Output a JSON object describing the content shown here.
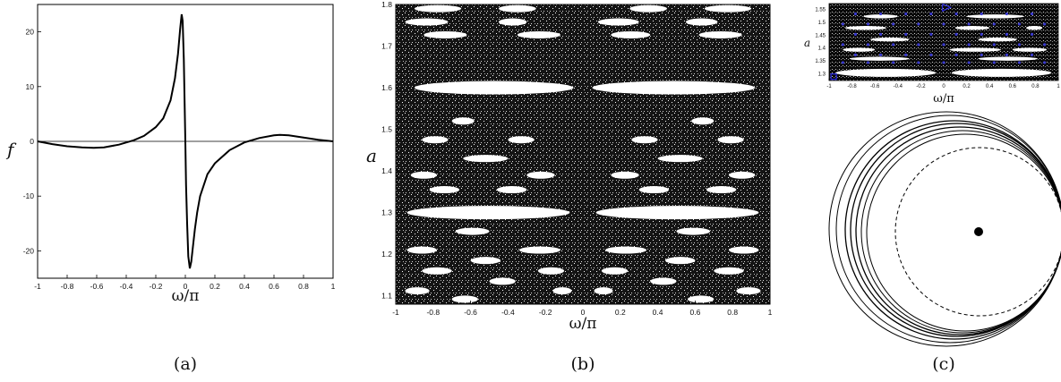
{
  "chart_data": [
    {
      "panel": "(a)",
      "type": "line",
      "xlabel": "ω/π",
      "ylabel": "f",
      "xlim": [
        -1,
        1
      ],
      "ylim": [
        -25,
        25
      ],
      "xticks": [
        "-1",
        "-0.8",
        "-0.6",
        "-0.4",
        "-0.2",
        "0",
        "0.2",
        "0.4",
        "0.6",
        "0.8",
        "1"
      ],
      "yticks": [
        "20",
        "10",
        "0",
        "-10",
        "-20"
      ],
      "ytick_values": [
        20,
        10,
        0,
        -10,
        -20
      ],
      "series": [
        {
          "x": [
            -1.0,
            -0.9,
            -0.8,
            -0.7,
            -0.62,
            -0.55,
            -0.45,
            -0.35,
            -0.28,
            -0.2,
            -0.15,
            -0.1,
            -0.07,
            -0.05,
            -0.035,
            -0.025,
            -0.018,
            -0.01,
            -0.005,
            0.0,
            0.005,
            0.012,
            0.02,
            0.03,
            0.04,
            0.05,
            0.065,
            0.08,
            0.1,
            0.15,
            0.2,
            0.3,
            0.4,
            0.5,
            0.6,
            0.64,
            0.7,
            0.8,
            0.9,
            1.0
          ],
          "values": [
            0,
            -0.5,
            -0.9,
            -1.1,
            -1.2,
            -1.1,
            -0.6,
            0.2,
            1.0,
            2.6,
            4.2,
            7.5,
            11.5,
            16.0,
            20.5,
            23.2,
            22.0,
            15.0,
            7.0,
            0.0,
            -8.0,
            -15.0,
            -21.0,
            -23.2,
            -22.0,
            -19.5,
            -16.0,
            -13.0,
            -10.0,
            -6.0,
            -4.0,
            -1.6,
            -0.2,
            0.6,
            1.1,
            1.2,
            1.1,
            0.7,
            0.3,
            0
          ]
        }
      ],
      "hline": 0
    },
    {
      "panel": "(b)",
      "type": "scatter",
      "xlabel": "ω/π",
      "ylabel": "a",
      "xlim": [
        -1,
        1
      ],
      "ylim": [
        1.08,
        1.8
      ],
      "xticks": [
        "-1",
        "-0.8",
        "-0.6",
        "-0.4",
        "-0.2",
        "0",
        "0.2",
        "0.4",
        "0.6",
        "0.8",
        "1"
      ],
      "yticks": [
        "1.8",
        "1.7",
        "1.6",
        "1.5",
        "1.4",
        "1.3",
        "1.2",
        "1.1"
      ],
      "ytick_values": [
        1.8,
        1.7,
        1.6,
        1.5,
        1.4,
        1.3,
        1.2,
        1.1
      ],
      "islands": [
        {
          "a": 1.6,
          "x": [
            -0.9,
            -0.05
          ]
        },
        {
          "a": 1.6,
          "x": [
            0.05,
            0.92
          ]
        },
        {
          "a": 1.3,
          "x": [
            -0.94,
            -0.07
          ]
        },
        {
          "a": 1.3,
          "x": [
            0.07,
            0.94
          ]
        },
        {
          "a": 1.758,
          "x": [
            -0.95,
            -0.72
          ]
        },
        {
          "a": 1.758,
          "x": [
            -0.45,
            -0.3
          ]
        },
        {
          "a": 1.758,
          "x": [
            0.08,
            0.3
          ]
        },
        {
          "a": 1.758,
          "x": [
            0.55,
            0.72
          ]
        },
        {
          "a": 1.727,
          "x": [
            -0.85,
            -0.62
          ]
        },
        {
          "a": 1.727,
          "x": [
            -0.35,
            -0.12
          ]
        },
        {
          "a": 1.727,
          "x": [
            0.15,
            0.36
          ]
        },
        {
          "a": 1.727,
          "x": [
            0.62,
            0.85
          ]
        },
        {
          "a": 1.79,
          "x": [
            -0.9,
            -0.65
          ]
        },
        {
          "a": 1.79,
          "x": [
            -0.45,
            -0.25
          ]
        },
        {
          "a": 1.79,
          "x": [
            0.25,
            0.45
          ]
        },
        {
          "a": 1.79,
          "x": [
            0.65,
            0.9
          ]
        },
        {
          "a": 1.43,
          "x": [
            -0.64,
            -0.4
          ]
        },
        {
          "a": 1.43,
          "x": [
            0.4,
            0.64
          ]
        },
        {
          "a": 1.475,
          "x": [
            -0.86,
            -0.72
          ]
        },
        {
          "a": 1.475,
          "x": [
            -0.4,
            -0.26
          ]
        },
        {
          "a": 1.475,
          "x": [
            0.26,
            0.4
          ]
        },
        {
          "a": 1.475,
          "x": [
            0.72,
            0.86
          ]
        },
        {
          "a": 1.52,
          "x": [
            -0.7,
            -0.58
          ]
        },
        {
          "a": 1.52,
          "x": [
            0.58,
            0.7
          ]
        },
        {
          "a": 1.39,
          "x": [
            -0.92,
            -0.78
          ]
        },
        {
          "a": 1.39,
          "x": [
            -0.3,
            -0.15
          ]
        },
        {
          "a": 1.39,
          "x": [
            0.15,
            0.3
          ]
        },
        {
          "a": 1.39,
          "x": [
            0.78,
            0.92
          ]
        },
        {
          "a": 1.355,
          "x": [
            -0.82,
            -0.66
          ]
        },
        {
          "a": 1.355,
          "x": [
            -0.46,
            -0.3
          ]
        },
        {
          "a": 1.355,
          "x": [
            0.3,
            0.46
          ]
        },
        {
          "a": 1.355,
          "x": [
            0.66,
            0.82
          ]
        },
        {
          "a": 1.255,
          "x": [
            -0.68,
            -0.5
          ]
        },
        {
          "a": 1.255,
          "x": [
            0.5,
            0.68
          ]
        },
        {
          "a": 1.21,
          "x": [
            -0.94,
            -0.78
          ]
        },
        {
          "a": 1.21,
          "x": [
            -0.34,
            -0.12
          ]
        },
        {
          "a": 1.21,
          "x": [
            0.12,
            0.34
          ]
        },
        {
          "a": 1.21,
          "x": [
            0.78,
            0.94
          ]
        },
        {
          "a": 1.185,
          "x": [
            -0.6,
            -0.44
          ]
        },
        {
          "a": 1.185,
          "x": [
            0.44,
            0.6
          ]
        },
        {
          "a": 1.16,
          "x": [
            -0.86,
            -0.7
          ]
        },
        {
          "a": 1.16,
          "x": [
            -0.24,
            -0.1
          ]
        },
        {
          "a": 1.16,
          "x": [
            0.1,
            0.24
          ]
        },
        {
          "a": 1.16,
          "x": [
            0.7,
            0.86
          ]
        },
        {
          "a": 1.135,
          "x": [
            -0.5,
            -0.36
          ]
        },
        {
          "a": 1.135,
          "x": [
            0.36,
            0.5
          ]
        },
        {
          "a": 1.112,
          "x": [
            -0.95,
            -0.82
          ]
        },
        {
          "a": 1.112,
          "x": [
            -0.16,
            -0.06
          ]
        },
        {
          "a": 1.112,
          "x": [
            0.06,
            0.16
          ]
        },
        {
          "a": 1.112,
          "x": [
            0.82,
            0.95
          ]
        },
        {
          "a": 1.092,
          "x": [
            -0.7,
            -0.56
          ]
        },
        {
          "a": 1.092,
          "x": [
            0.56,
            0.7
          ]
        }
      ]
    },
    {
      "panel": "(c)",
      "type": "scatter",
      "xlabel": "ω/π",
      "ylabel": "a",
      "xlim": [
        -1,
        1
      ],
      "ylim": [
        1.27,
        1.57
      ],
      "xticks": [
        "-1",
        "-0.8",
        "-0.6",
        "-0.4",
        "-0.2",
        "0",
        "0.2",
        "0.4",
        "0.6",
        "0.8",
        "1"
      ],
      "yticks": [
        "1.55",
        "1.5",
        "1.45",
        "1.4",
        "1.35",
        "1.3"
      ],
      "ytick_values": [
        1.55,
        1.5,
        1.45,
        1.4,
        1.35,
        1.3
      ],
      "islands": [
        {
          "a": 1.3,
          "x": [
            -0.94,
            -0.07
          ]
        },
        {
          "a": 1.3,
          "x": [
            0.07,
            0.94
          ]
        },
        {
          "a": 1.39,
          "x": [
            -0.88,
            -0.6
          ]
        },
        {
          "a": 1.39,
          "x": [
            0.05,
            0.5
          ]
        },
        {
          "a": 1.39,
          "x": [
            0.6,
            0.9
          ]
        },
        {
          "a": 1.43,
          "x": [
            -0.64,
            -0.3
          ]
        },
        {
          "a": 1.43,
          "x": [
            0.3,
            0.64
          ]
        },
        {
          "a": 1.355,
          "x": [
            -0.82,
            -0.3
          ]
        },
        {
          "a": 1.355,
          "x": [
            0.3,
            0.82
          ]
        },
        {
          "a": 1.475,
          "x": [
            -0.86,
            -0.5
          ]
        },
        {
          "a": 1.475,
          "x": [
            0.1,
            0.4
          ]
        },
        {
          "a": 1.475,
          "x": [
            0.72,
            0.86
          ]
        },
        {
          "a": 1.52,
          "x": [
            -0.7,
            -0.4
          ]
        },
        {
          "a": 1.52,
          "x": [
            0.2,
            0.7
          ]
        }
      ],
      "markers": [
        {
          "shape": "triangle",
          "x": 0.02,
          "a": 1.555,
          "color": "#2a2ad8"
        },
        {
          "shape": "square",
          "x": -0.96,
          "a": 1.285,
          "color": "#2a2ad8"
        }
      ],
      "dot_color": "#3a3ad0"
    }
  ],
  "captions": {
    "a": "(a)",
    "b": "(b)",
    "c": "(c)"
  }
}
